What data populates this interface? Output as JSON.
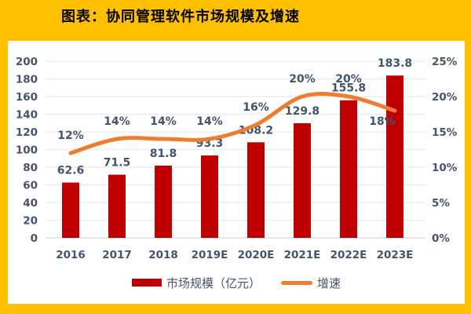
{
  "title": "图表：协同管理软件市场规模及增速",
  "colors": {
    "background": "#FFC000",
    "panel": "#FFFFFF",
    "bar": "#C00000",
    "line": "#ED7D31",
    "axis_text": "#44546A",
    "gridline": "#ECE8EC",
    "baseline": "#D9D5D9",
    "title_text": "#000000"
  },
  "chart_data": {
    "type": "bar",
    "subtype": "bar+line combo, dual axis, smoothed line",
    "title": "图表：协同管理软件市场规模及增速",
    "categories": [
      "2016",
      "2017",
      "2018",
      "2019E",
      "2020E",
      "2021E",
      "2022E",
      "2023E"
    ],
    "series": [
      {
        "name": "市场规模（亿元）",
        "type": "bar",
        "axis": "left",
        "values": [
          62.6,
          71.5,
          81.8,
          93.3,
          108.2,
          129.8,
          155.8,
          183.8
        ],
        "labels": [
          "62.6",
          "71.5",
          "81.8",
          "93.3",
          "108.2",
          "129.8",
          "155.8",
          "183.8"
        ]
      },
      {
        "name": "增速",
        "type": "line",
        "axis": "right",
        "values": [
          12,
          14,
          14,
          14,
          16,
          20,
          20,
          18
        ],
        "labels": [
          "12%",
          "14%",
          "14%",
          "14%",
          "16%",
          "20%",
          "20%",
          "18%"
        ]
      }
    ],
    "left_axis": {
      "min": 0,
      "max": 200,
      "step": 20,
      "ticks": [
        "0",
        "20",
        "40",
        "60",
        "80",
        "100",
        "120",
        "140",
        "160",
        "180",
        "200"
      ]
    },
    "right_axis": {
      "min": 0,
      "max": 25,
      "step": 5,
      "ticks": [
        "0%",
        "5%",
        "10%",
        "15%",
        "20%",
        "25%"
      ]
    },
    "grid": true,
    "line_smooth": true,
    "legend_position": "bottom"
  },
  "legend": {
    "items": [
      {
        "label": "市场规模（亿元）",
        "marker": "bar-swatch"
      },
      {
        "label": "增速",
        "marker": "line-swatch"
      }
    ]
  }
}
